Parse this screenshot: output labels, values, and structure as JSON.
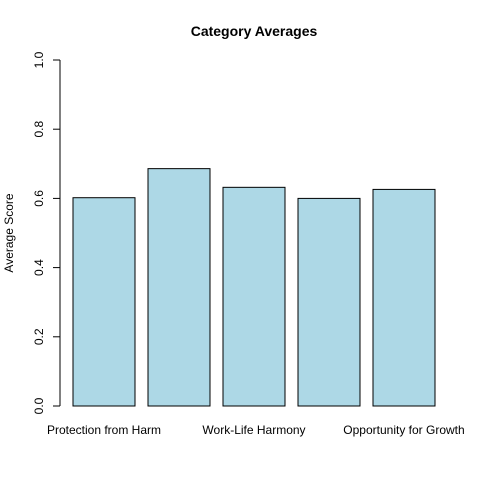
{
  "chart_data": {
    "type": "bar",
    "title": "Category Averages",
    "xlabel": "",
    "ylabel": "Average Score",
    "ylim": [
      0,
      1
    ],
    "yticks": [
      0.0,
      0.2,
      0.4,
      0.6,
      0.8,
      1.0
    ],
    "ytick_labels": [
      "0.0",
      "0.2",
      "0.4",
      "0.6",
      "0.8",
      "1.0"
    ],
    "categories": [
      "Protection from Harm",
      "Work-Life Harmony",
      "Opportunity for Growth",
      "",
      ""
    ],
    "category_labels_shown": [
      true,
      false,
      true,
      false,
      true
    ],
    "x_labels": [
      "Protection from Harm",
      "Work-Life Harmony",
      "Opportunity for Growth"
    ],
    "values": [
      0.602,
      0.686,
      0.632,
      0.6,
      0.626
    ],
    "bar_color": "#add8e6",
    "grid": false
  }
}
